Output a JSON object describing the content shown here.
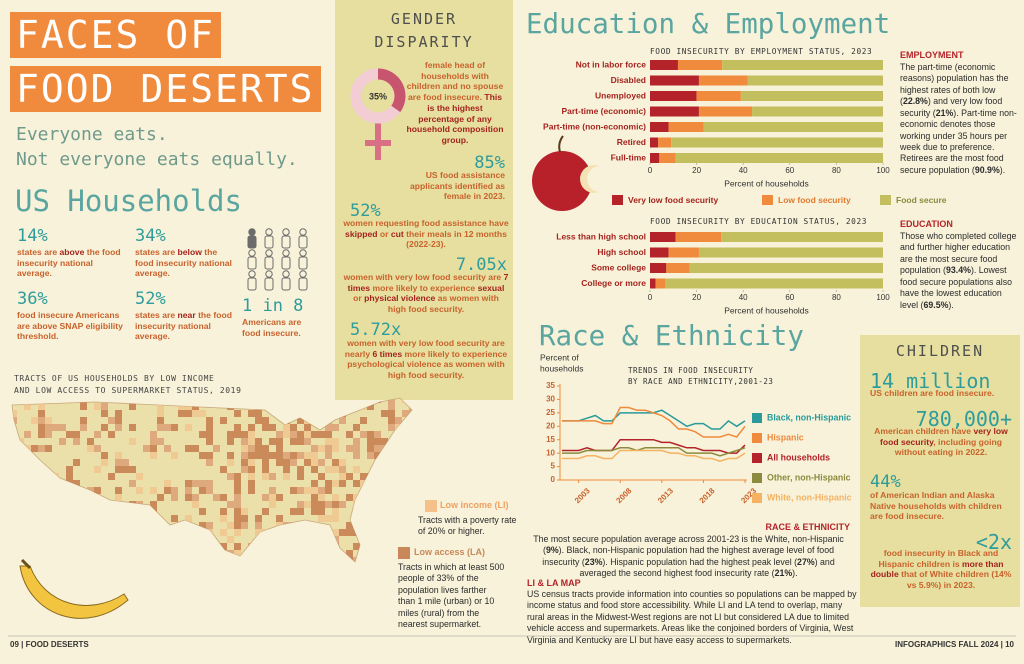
{
  "left": {
    "title": [
      "FACES OF",
      "FOOD DESERTS"
    ],
    "tagline": [
      "Everyone eats.",
      "Not everyone eats equally."
    ],
    "households_title": "US Households",
    "stats": [
      {
        "figure": "14%",
        "text": [
          "states are ",
          "above",
          " the food insecurity national average."
        ]
      },
      {
        "figure": "34%",
        "text": [
          "states are ",
          "below",
          " the food insecurity national average."
        ]
      },
      {
        "figure": "36%",
        "text": [
          "food insecure Americans are above SNAP eligibility threshold."
        ]
      },
      {
        "figure": "52%",
        "text": [
          "states are ",
          "near",
          " the food insecurity national average."
        ]
      },
      {
        "figure": "1 in 8",
        "text": [
          "Americans are food insecure."
        ]
      }
    ],
    "map": {
      "title": [
        "TRACTS OF US HOUSEHOLDS BY LOW INCOME",
        "AND LOW ACCESS TO SUPERMARKET STATUS, 2019"
      ],
      "legend": [
        {
          "name": "Low income (LI)",
          "text": "Tracts with a poverty rate of 20% or higher."
        },
        {
          "name": "Low access (LA)",
          "text": "Tracts in which at least 500 people of 33% of the population lives farther than 1 mile (urban) or 10 miles (rural) from the nearest supermarket."
        }
      ]
    },
    "footer": "09 | FOOD DESERTS"
  },
  "gender": {
    "title": [
      "GENDER",
      "DISPARITY"
    ],
    "lead": [
      "female head of households with children and no spouse are food insecure. ",
      "This is the highest percentage of any household composition group."
    ],
    "stats": [
      {
        "figure": "85%",
        "text": [
          "US food assistance applicants identified as female in 2023."
        ]
      },
      {
        "figure": "52%",
        "text": [
          "women requesting food assistance have ",
          "skipped",
          " or ",
          "cut",
          " their meals in 12 months (2022-23)."
        ]
      },
      {
        "figure": "7.05x",
        "text": [
          "women with very low food security are ",
          "7 times",
          " more likely to experience ",
          "sexual",
          " or ",
          "physical violence",
          " as women with high food security."
        ]
      },
      {
        "figure": "5.72x",
        "text": [
          "women with very low food security are nearly ",
          "6 times",
          " more likely to experience psychological violence as women with high food security."
        ]
      }
    ]
  },
  "right": {
    "education_title": "Education & Employment",
    "employment_note": {
      "heading": "EMPLOYMENT",
      "text": [
        "The part-time (economic reasons) population has the highest rates of both low (",
        "22.8%",
        ") and very low food security (",
        "21%",
        "). Part-time non-economic denotes those working under 35 hours per week due to preference.  Retirees are the most food secure population (",
        "90.9%",
        ")."
      ]
    },
    "education_note": {
      "heading": "EDUCATION",
      "text": [
        "Those who completed college and further higher education are the most secure food population (",
        "93.4%",
        "). Lowest food secure populations also have the lowest education level (",
        "69.5%",
        ")."
      ]
    },
    "race_title": "Race & Ethnicity",
    "race_note": {
      "heading": "RACE & ETHNICITY",
      "text": [
        "The most secure population average across 2001-23 is the White, non-Hispanic (",
        "9%",
        "). Black, non-Hispanic population had the highest average level of food insecurity (",
        "23%",
        "). Hispanic population had the highest peak level (",
        "27%",
        ") and averaged the second highest food insecurity rate (",
        "21%",
        ")."
      ]
    },
    "map_note": {
      "heading": "LI & LA MAP",
      "text": [
        "US census tracts provide information into counties so populations can be mapped by income status and food store accessibility. While LI and LA tend to overlap, many rural areas in the Midwest-West regions are not LI but considered LA due to limited vehicle access and supermarkets. Areas like the conjoined borders of Virginia, West Virginia and Kentucky are LI but have easy access to supermarkets."
      ]
    },
    "footer": "INFOGRAPHICS FALL 2024 | 10"
  },
  "children": {
    "title": "CHILDREN",
    "stats": [
      {
        "figure": "14 million",
        "text": [
          "US children are food insecure."
        ]
      },
      {
        "figure": "780,000+",
        "text": [
          "American children have ",
          "very low food security",
          ", including going without eating in 2022."
        ]
      },
      {
        "figure": "44%",
        "text": [
          "of American Indian and Alaska Native households with children are food insecure."
        ]
      },
      {
        "figure": "<2x",
        "text": [
          "food insecurity in Black and Hispanic children is ",
          "more than double",
          " that of White children (14% vs 5.9%) in 2023."
        ]
      }
    ]
  },
  "chart_data": [
    {
      "type": "bar",
      "orientation": "horizontal",
      "stacked": true,
      "title": "FOOD INSECURITY BY EMPLOYMENT STATUS, 2023",
      "categories": [
        "Not in labor force",
        "Disabled",
        "Unemployed",
        "Part-time (economic)",
        "Part-time (non-economic)",
        "Retired",
        "Full-time"
      ],
      "series": [
        {
          "name": "Very low food security",
          "color": "#b5232a",
          "values": [
            12,
            21,
            20,
            21,
            8,
            3.5,
            4
          ]
        },
        {
          "name": "Low food security",
          "color": "#f08a3c",
          "values": [
            19,
            21,
            19,
            22.8,
            15,
            5.6,
            7
          ]
        },
        {
          "name": "Food secure",
          "color": "#c4bf5e",
          "values": [
            69,
            58,
            61,
            56.2,
            77,
            90.9,
            89
          ]
        }
      ],
      "xlim": [
        0,
        100
      ],
      "xticks": [
        0,
        20,
        40,
        60,
        80,
        100
      ],
      "xlabel": "Percent of households"
    },
    {
      "type": "bar",
      "orientation": "horizontal",
      "stacked": true,
      "title": "FOOD INSECURITY BY EDUCATION STATUS, 2023",
      "categories": [
        "Less than high school",
        "High school",
        "Some college",
        "College or more"
      ],
      "series": [
        {
          "color": "#b5232a",
          "values": [
            11,
            8,
            7,
            2.4
          ]
        },
        {
          "color": "#f08a3c",
          "values": [
            19.5,
            13,
            10,
            4.2
          ]
        },
        {
          "color": "#c4bf5e",
          "values": [
            69.5,
            79,
            83,
            93.4
          ]
        }
      ],
      "xlim": [
        0,
        100
      ],
      "xticks": [
        0,
        20,
        40,
        60,
        80,
        100
      ],
      "xlabel": "Percent of households"
    },
    {
      "type": "line",
      "title": [
        "TRENDS IN FOOD INSECURITY",
        "BY RACE AND ETHNICITY,2001-23"
      ],
      "ylabel": [
        "Percent of",
        "households"
      ],
      "x": [
        2001,
        2002,
        2003,
        2004,
        2005,
        2006,
        2007,
        2008,
        2009,
        2010,
        2011,
        2012,
        2013,
        2014,
        2015,
        2016,
        2017,
        2018,
        2019,
        2020,
        2021,
        2022,
        2023
      ],
      "xlim": [
        2001,
        2023
      ],
      "xticks": [
        2003,
        2008,
        2013,
        2018,
        2023
      ],
      "ylim": [
        0,
        35
      ],
      "yticks": [
        0,
        5,
        10,
        15,
        20,
        25,
        30,
        35
      ],
      "series": [
        {
          "name": "Black, non-Hispanic",
          "color": "#2a9a9a",
          "values": [
            22,
            22,
            22,
            23,
            24,
            22,
            22,
            25,
            25,
            25,
            25,
            25,
            26,
            24,
            22,
            20,
            21,
            21,
            19,
            19,
            22,
            20,
            22
          ]
        },
        {
          "name": "Hispanic",
          "color": "#f08a3c",
          "values": [
            22,
            22,
            22,
            22,
            22,
            21,
            21,
            27,
            27,
            26,
            26,
            25,
            24,
            22,
            19,
            19,
            18,
            16,
            16,
            16,
            17,
            16,
            20
          ]
        },
        {
          "name": "All households",
          "color": "#b5232a",
          "values": [
            11,
            11,
            11,
            12,
            11,
            11,
            11,
            15,
            15,
            15,
            15,
            15,
            14,
            14,
            13,
            12,
            12,
            11,
            11,
            11,
            10,
            10,
            13
          ]
        },
        {
          "name": "Other, non-Hispanic",
          "color": "#8c8a3e",
          "values": [
            10,
            10,
            10,
            11,
            11,
            11,
            11,
            12,
            12,
            11,
            12,
            12,
            12,
            12,
            12,
            10,
            10,
            10,
            10,
            9,
            10,
            11,
            12
          ]
        },
        {
          "name": "White, non-Hispanic",
          "color": "#f5b262",
          "values": [
            8,
            8,
            8,
            9,
            9,
            8,
            8,
            11,
            11,
            11,
            11,
            11,
            11,
            10,
            10,
            9,
            9,
            8,
            8,
            7,
            8,
            8,
            10
          ]
        }
      ]
    },
    {
      "type": "pie",
      "values": [
        35
      ],
      "value_labels": [
        "35%"
      ],
      "color": "#c8556e"
    }
  ]
}
